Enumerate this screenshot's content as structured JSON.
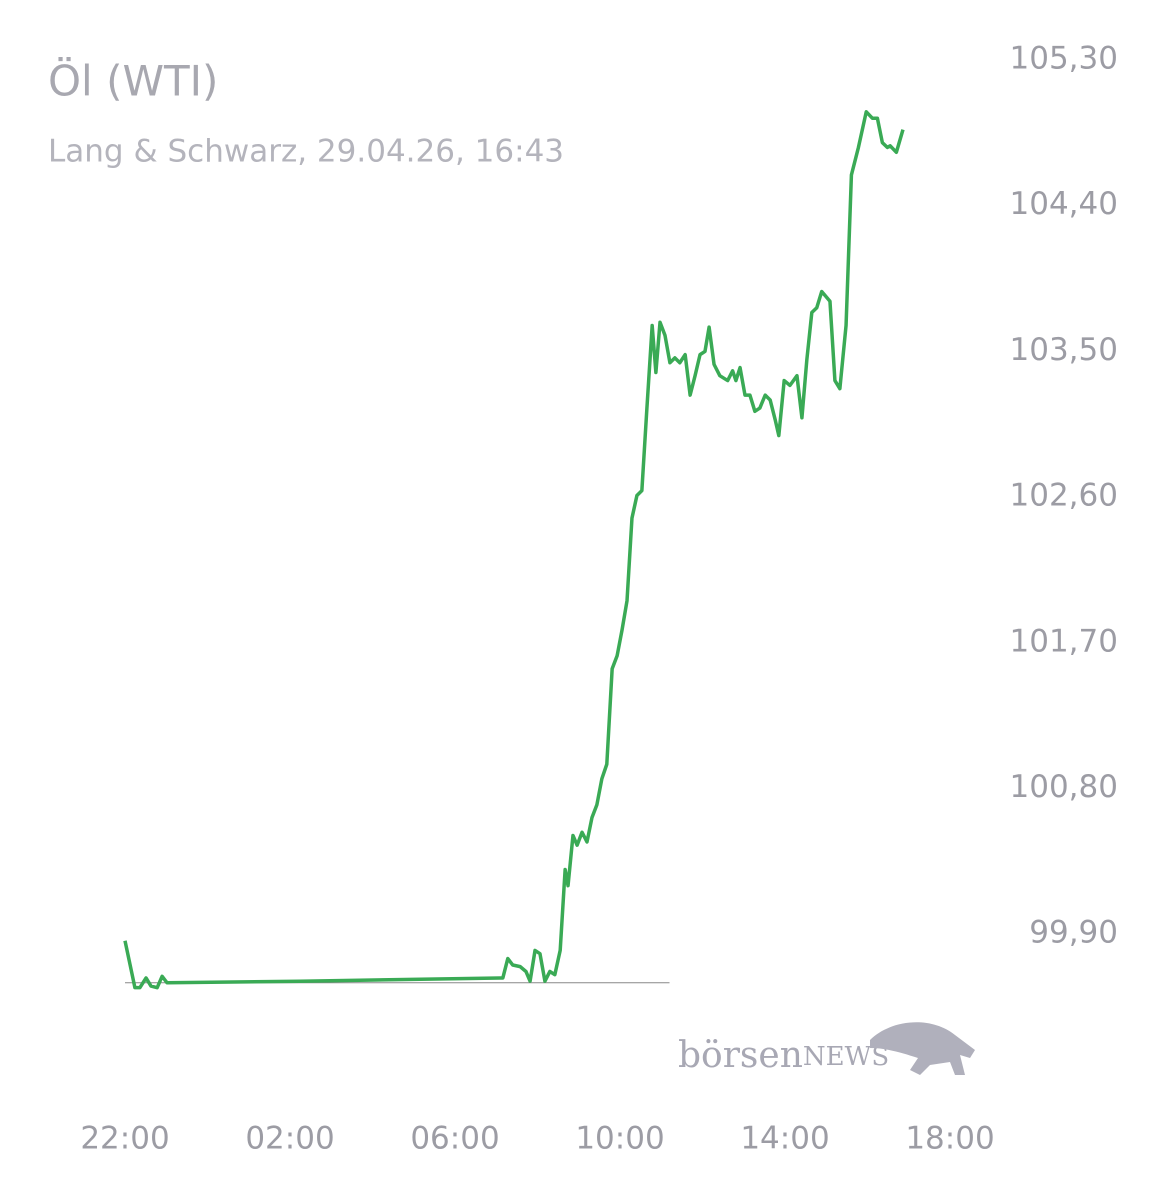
{
  "chart_data": {
    "type": "line",
    "title": "Öl (WTI)",
    "subtitle": "Lang & Schwarz, 29.04.26, 16:43",
    "watermark": [
      "börsen",
      "NEWS"
    ],
    "color": "#3aaa55",
    "xlim": [
      0,
      20
    ],
    "xticks": [
      {
        "value": 0,
        "label": "22:00"
      },
      {
        "value": 4,
        "label": "02:00"
      },
      {
        "value": 8,
        "label": "06:00"
      },
      {
        "value": 12,
        "label": "10:00"
      },
      {
        "value": 16,
        "label": "14:00"
      },
      {
        "value": 20,
        "label": "18:00"
      }
    ],
    "ylim": [
      99.5,
      105.3
    ],
    "yticks": [
      {
        "value": 105.3,
        "label": "105,30"
      },
      {
        "value": 104.4,
        "label": "104,40"
      },
      {
        "value": 103.5,
        "label": "103,50"
      },
      {
        "value": 102.6,
        "label": "102,60"
      },
      {
        "value": 101.7,
        "label": "101,70"
      },
      {
        "value": 100.8,
        "label": "100,80"
      },
      {
        "value": 99.9,
        "label": "99,90"
      }
    ],
    "baseline": {
      "value": 99.6,
      "x": [
        0,
        13.2
      ]
    },
    "x": [
      0,
      0.24,
      0.36,
      0.51,
      0.63,
      0.78,
      0.9,
      1.02,
      4.24,
      9.09,
      9.16,
      9.28,
      9.4,
      9.58,
      9.72,
      9.82,
      9.94,
      10.06,
      10.18,
      10.3,
      10.42,
      10.55,
      10.67,
      10.74,
      10.86,
      10.96,
      11.08,
      11.2,
      11.32,
      11.44,
      11.56,
      11.68,
      11.81,
      11.93,
      12.05,
      12.17,
      12.29,
      12.41,
      12.53,
      12.65,
      12.78,
      12.87,
      12.97,
      13.09,
      13.21,
      13.33,
      13.45,
      13.58,
      13.7,
      13.82,
      13.94,
      14.06,
      14.16,
      14.28,
      14.42,
      14.61,
      14.73,
      14.81,
      14.91,
      15.03,
      15.15,
      15.27,
      15.39,
      15.52,
      15.64,
      15.76,
      15.85,
      15.98,
      16.12,
      16.29,
      16.41,
      16.53,
      16.65,
      16.77,
      16.89,
      17.09,
      17.21,
      17.33,
      17.48,
      17.61,
      17.78,
      17.97,
      18.12,
      18.24,
      18.36,
      18.48,
      18.55,
      18.7,
      18.86
    ],
    "values": [
      99.86,
      99.57,
      99.57,
      99.63,
      99.58,
      99.57,
      99.64,
      99.6,
      99.61,
      99.63,
      99.63,
      99.75,
      99.71,
      99.7,
      99.67,
      99.61,
      99.8,
      99.78,
      99.61,
      99.67,
      99.65,
      99.8,
      100.3,
      100.2,
      100.51,
      100.45,
      100.53,
      100.47,
      100.62,
      100.7,
      100.86,
      100.95,
      101.54,
      101.62,
      101.78,
      101.96,
      102.47,
      102.61,
      102.64,
      103.14,
      103.66,
      103.37,
      103.68,
      103.6,
      103.43,
      103.46,
      103.43,
      103.48,
      103.23,
      103.35,
      103.48,
      103.5,
      103.65,
      103.42,
      103.35,
      103.32,
      103.38,
      103.32,
      103.4,
      103.23,
      103.23,
      103.13,
      103.15,
      103.23,
      103.2,
      103.08,
      102.98,
      103.32,
      103.29,
      103.35,
      103.09,
      103.45,
      103.74,
      103.77,
      103.87,
      103.81,
      103.32,
      103.27,
      103.66,
      104.59,
      104.76,
      104.98,
      104.94,
      104.94,
      104.79,
      104.76,
      104.77,
      104.73,
      104.87
    ]
  }
}
